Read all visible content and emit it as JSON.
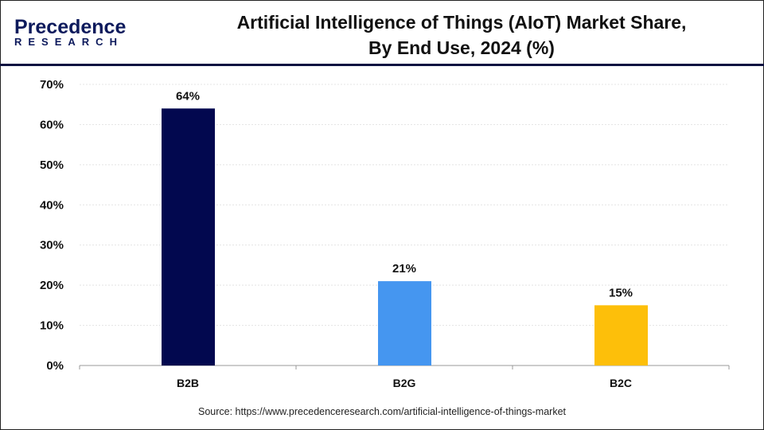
{
  "logo": {
    "line1": "Precedence",
    "line2": "RESEARCH"
  },
  "title_line1": "Artificial Intelligence of Things (AIoT) Market Share,",
  "title_line2": "By End Use, 2024 (%)",
  "source": "Source: https://www.precedenceresearch.com/artificial-intelligence-of-things-market",
  "chart_data": {
    "type": "bar",
    "categories": [
      "B2B",
      "B2G",
      "B2C"
    ],
    "values": [
      64,
      21,
      15
    ],
    "data_labels": [
      "64%",
      "21%",
      "15%"
    ],
    "colors": [
      "#02084f",
      "#4596f0",
      "#fdbf0a"
    ],
    "ylim": [
      0,
      70
    ],
    "yticks": [
      "0%",
      "10%",
      "20%",
      "30%",
      "40%",
      "50%",
      "60%",
      "70%"
    ],
    "grid": true
  }
}
